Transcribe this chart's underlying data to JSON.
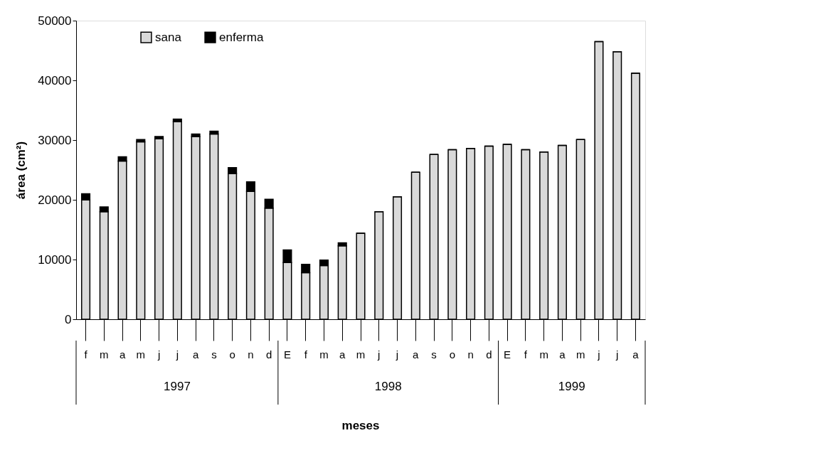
{
  "chart_data": {
    "type": "bar",
    "stacked": true,
    "xlabel": "meses",
    "ylabel": "área (cm²)",
    "categories": [
      "f",
      "m",
      "a",
      "m",
      "j",
      "j",
      "a",
      "s",
      "o",
      "n",
      "d",
      "E",
      "f",
      "m",
      "a",
      "m",
      "j",
      "j",
      "a",
      "s",
      "o",
      "n",
      "d",
      "E",
      "f",
      "m",
      "a",
      "m",
      "j",
      "j",
      "a"
    ],
    "series": [
      {
        "name": "sana",
        "color": "#d9d9d9",
        "values": [
          20000,
          18000,
          26500,
          29700,
          30200,
          33100,
          30600,
          31000,
          24400,
          21400,
          18600,
          9500,
          7800,
          9000,
          12300,
          14400,
          18000,
          20500,
          24600,
          27600,
          28400,
          28600,
          29000,
          29300,
          28400,
          28000,
          29100,
          30100,
          46500,
          44800,
          41200
        ]
      },
      {
        "name": "enferma",
        "color": "#000000",
        "values": [
          1000,
          800,
          700,
          400,
          400,
          400,
          400,
          500,
          1000,
          1600,
          1500,
          2100,
          1400,
          900,
          500,
          0,
          0,
          0,
          0,
          0,
          0,
          0,
          0,
          0,
          0,
          0,
          0,
          0,
          0,
          0,
          0
        ]
      }
    ],
    "ylim": [
      0,
      50000
    ],
    "yticks": [
      0,
      10000,
      20000,
      30000,
      40000,
      50000
    ],
    "grid": false,
    "legend": "top left",
    "annotations": [
      "1997",
      "1998",
      "1999"
    ]
  }
}
